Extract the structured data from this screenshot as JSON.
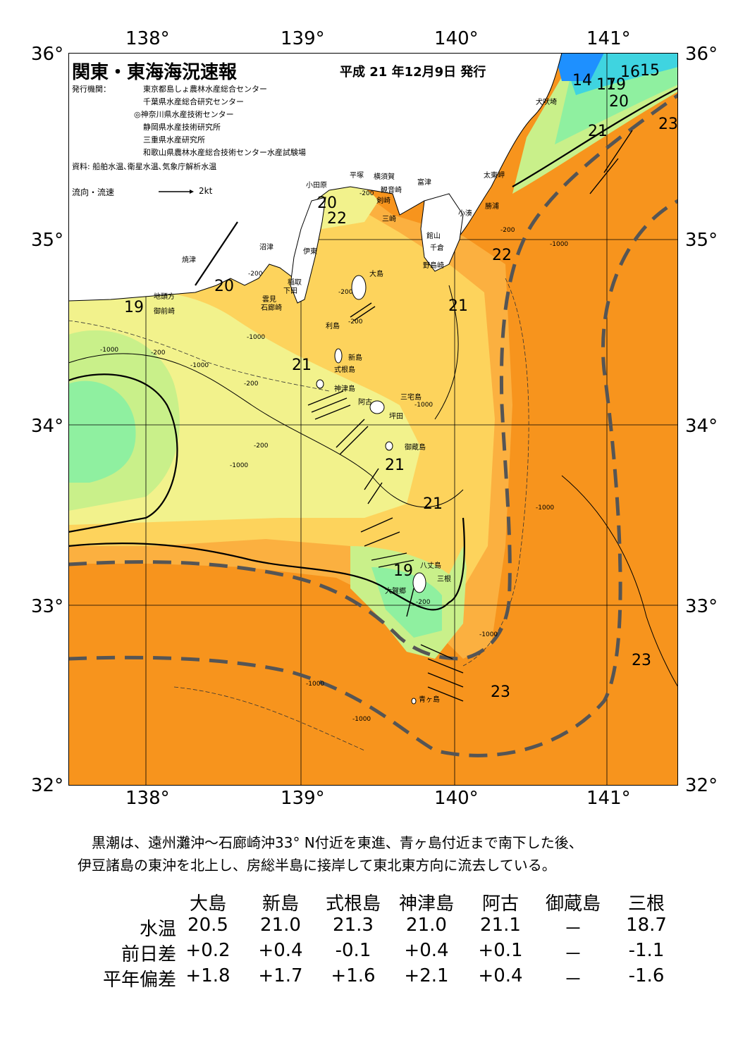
{
  "header": {
    "title": "関東・東海海況速報",
    "issued": "平成 21 年12月9日 発行",
    "issuer_label": "発行機関：",
    "issuers": [
      "東京都島しょ農林水産総合センター",
      "千葉県水産総合研究センター",
      "◎神奈川県水産技術センター",
      "静岡県水産技術研究所",
      "三重県水産研究所",
      "和歌山県農林水産総合技術センター水産試験場"
    ],
    "sources": "資料: 船舶水温､衛星水温､気象庁解析水温",
    "legend_label": "流向・流速",
    "legend_scale": "2kt"
  },
  "axes": {
    "lon_top": [
      "138°",
      "139°",
      "140°",
      "141°"
    ],
    "lon_bottom": [
      "138°",
      "139°",
      "140°",
      "141°"
    ],
    "lat_left": [
      "36°",
      "35°",
      "34°",
      "33°",
      "32°"
    ],
    "lat_right": [
      "36°",
      "35°",
      "34°",
      "33°",
      "32°"
    ]
  },
  "places": [
    "犬吠埼",
    "太東岬",
    "勝浦",
    "小湊",
    "富津",
    "横須賀",
    "観音崎",
    "剣崎",
    "三崎",
    "平塚",
    "小田原",
    "館山",
    "千倉",
    "野島崎",
    "沼津",
    "伊東",
    "焼津",
    "稲取",
    "下田",
    "雲見",
    "石廊崎",
    "地頭方",
    "御前崎",
    "大島",
    "利島",
    "新島",
    "式根島",
    "神津島",
    "三宅島",
    "阿古",
    "坪田",
    "御蔵島",
    "八丈島",
    "三根",
    "大賀郷",
    "青ヶ島"
  ],
  "temperatures": [
    "14",
    "17",
    "19",
    "16",
    "15",
    "20",
    "21",
    "23",
    "20",
    "22",
    "22",
    "20",
    "19",
    "21",
    "21",
    "21",
    "21",
    "19",
    "23",
    "23"
  ],
  "depths": [
    "-200",
    "-200",
    "-200",
    "-200",
    "-1000",
    "-1000",
    "-200",
    "-1000",
    "-1000",
    "-200",
    "-1000",
    "-200",
    "-1000",
    "-1000",
    "-200",
    "-1000",
    "-1000",
    "-1000",
    "-200"
  ],
  "colors": {
    "warm_23": "#f7941d",
    "warm_22": "#fbb040",
    "mid_21": "#fdd35c",
    "cool_20": "#f2f28c",
    "green_19": "#c9f08a",
    "green_18": "#8ff0a0",
    "cold_15": "#3fd4e0",
    "cold_14": "#1e90ff",
    "kuroshio_axis": "#555555"
  },
  "summary": {
    "line1": "黒潮は、遠州灘沖～石廊崎沖33° N付近を東進、青ヶ島付近まで南下した後、",
    "line2": "伊豆諸島の東沖を北上し、房総半島に接岸して東北東方向に流去している。"
  },
  "table": {
    "columns": [
      "大島",
      "新島",
      "式根島",
      "神津島",
      "阿古",
      "御蔵島",
      "三根"
    ],
    "rows": [
      {
        "label": "水温",
        "values": [
          "20.5",
          "21.0",
          "21.3",
          "21.0",
          "21.1",
          "－",
          "18.7"
        ]
      },
      {
        "label": "前日差",
        "values": [
          "+0.2",
          "+0.4",
          "-0.1",
          "+0.4",
          "+0.1",
          "－",
          "-1.1"
        ]
      },
      {
        "label": "平年偏差",
        "values": [
          "+1.8",
          "+1.7",
          "+1.6",
          "+2.1",
          "+0.4",
          "－",
          "-1.6"
        ]
      }
    ]
  }
}
